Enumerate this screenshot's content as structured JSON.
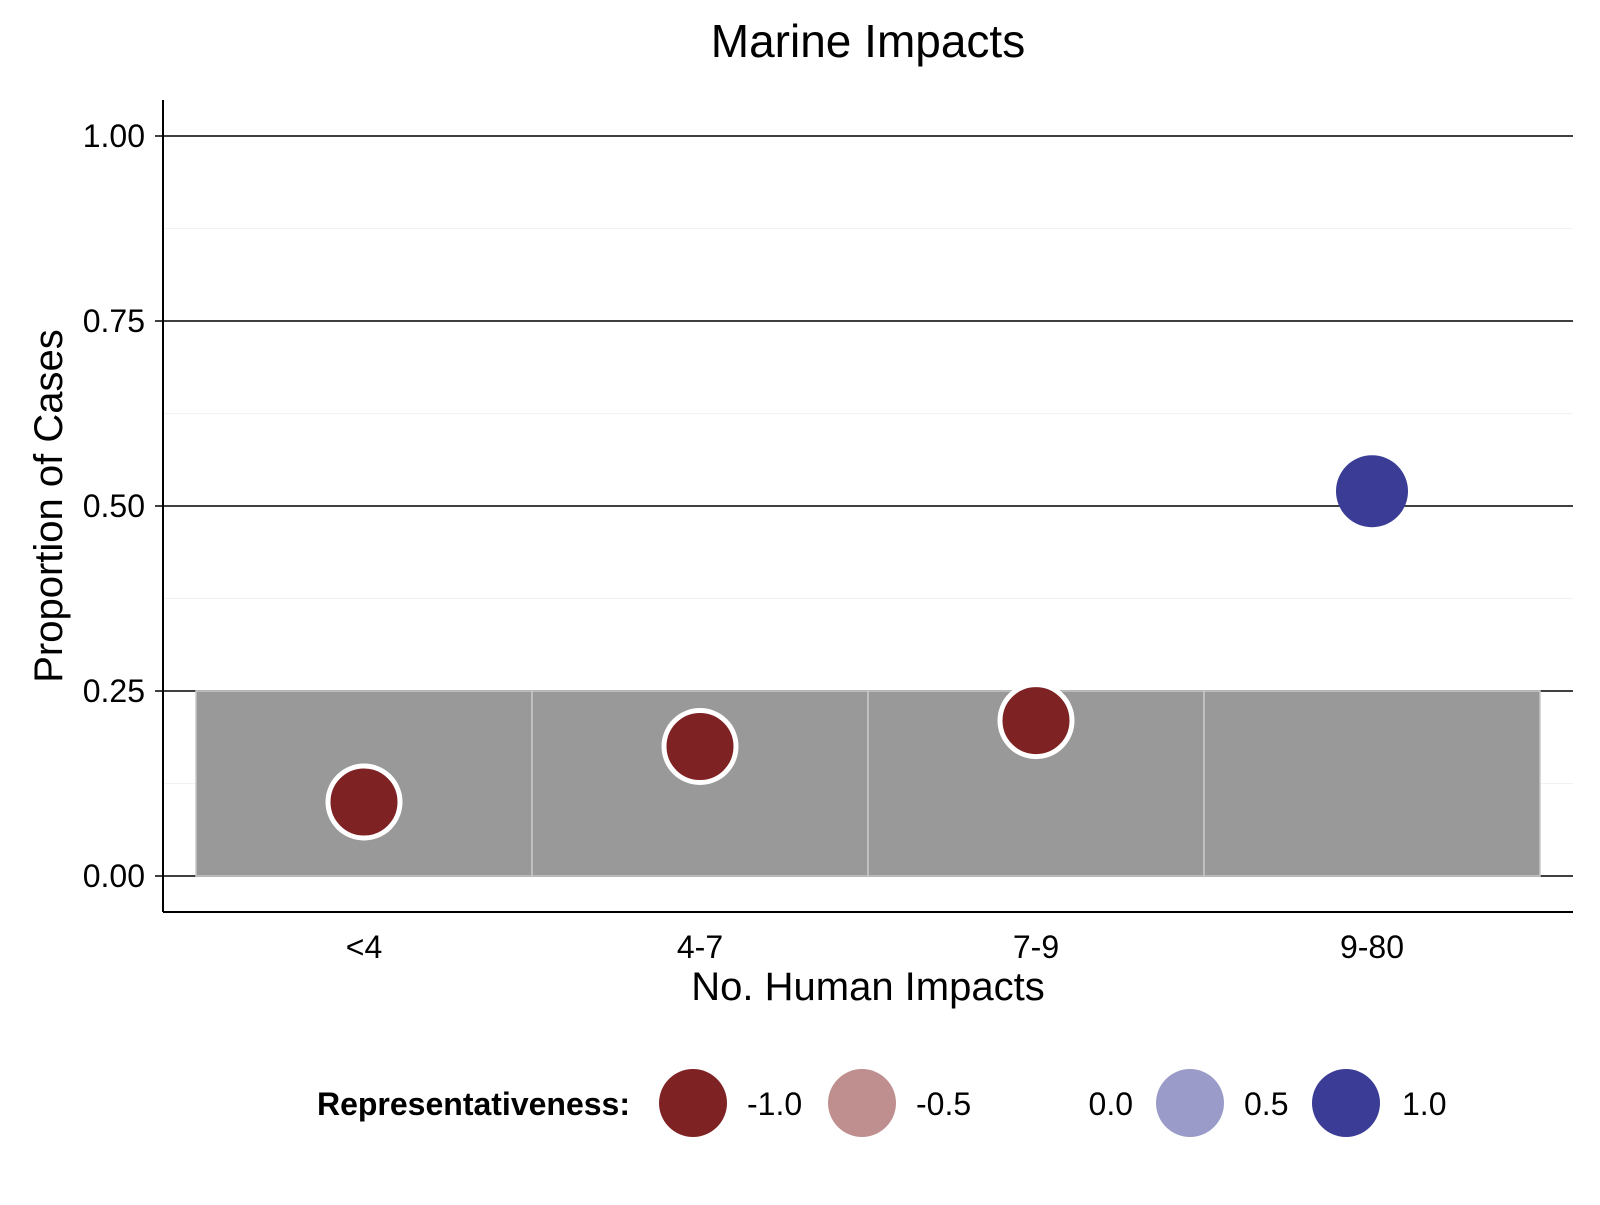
{
  "chart_data": {
    "type": "scatter",
    "title": "Marine Impacts",
    "xlabel": "No. Human Impacts",
    "ylabel": "Proportion of Cases",
    "categories": [
      "<4",
      "4-7",
      "7-9",
      "9-80"
    ],
    "ylim": [
      -0.05,
      1.05
    ],
    "yticks": [
      0.0,
      0.25,
      0.5,
      0.75,
      1.0
    ],
    "ytick_labels": [
      "0.00",
      "0.25",
      "0.50",
      "0.75",
      "1.00"
    ],
    "grid": "horizontal",
    "expected_band": {
      "color": "#999999",
      "values": [
        0.25,
        0.25,
        0.25,
        0.25
      ]
    },
    "series": [
      {
        "values": [
          0.1,
          0.175,
          0.21,
          0.52
        ],
        "representativeness": [
          -1.0,
          -1.0,
          -1.0,
          1.0
        ]
      }
    ],
    "legend": {
      "title": "Representativeness:",
      "position": "bottom",
      "items": [
        {
          "label": "-1.0",
          "color": "#7f2223"
        },
        {
          "label": "-0.5",
          "color": "#bf8f8f"
        },
        {
          "label": "0.0",
          "color": "#ffffff"
        },
        {
          "label": "0.5",
          "color": "#9a9bc9"
        },
        {
          "label": "1.0",
          "color": "#3a3c96"
        }
      ]
    }
  }
}
